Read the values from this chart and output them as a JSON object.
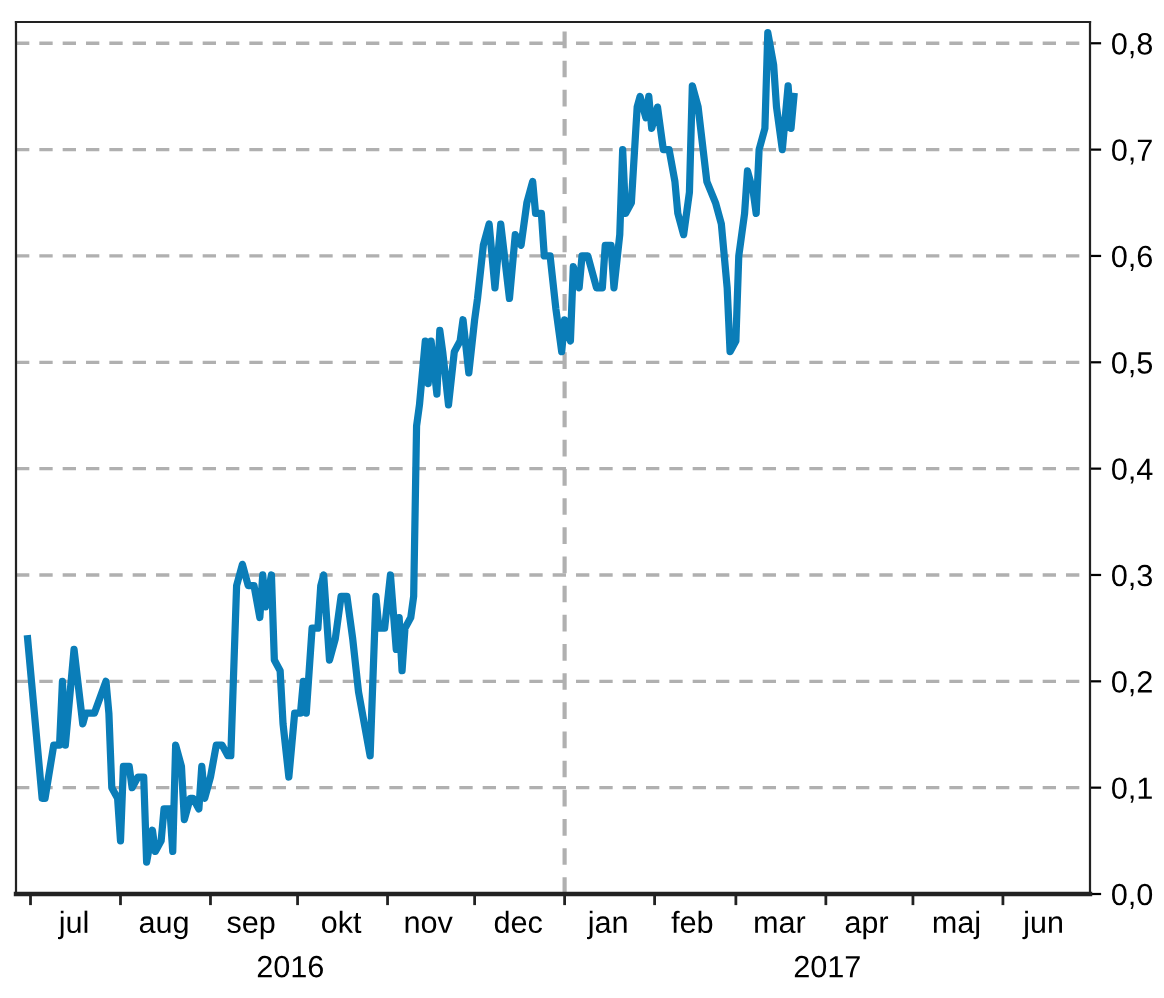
{
  "chart_data": {
    "type": "line",
    "x": [
      "2016-06-30",
      "2016-07-05",
      "2016-07-06",
      "2016-07-09",
      "2016-07-11",
      "2016-07-12",
      "2016-07-13",
      "2016-07-16",
      "2016-07-19",
      "2016-07-20",
      "2016-07-23",
      "2016-07-27",
      "2016-07-28",
      "2016-07-29",
      "2016-07-31",
      "2016-08-01",
      "2016-08-02",
      "2016-08-04",
      "2016-08-05",
      "2016-08-07",
      "2016-08-09",
      "2016-08-10",
      "2016-08-12",
      "2016-08-13",
      "2016-08-15",
      "2016-08-16",
      "2016-08-18",
      "2016-08-19",
      "2016-08-20",
      "2016-08-22",
      "2016-08-23",
      "2016-08-25",
      "2016-08-26",
      "2016-08-28",
      "2016-08-29",
      "2016-08-30",
      "2016-09-01",
      "2016-09-03",
      "2016-09-05",
      "2016-09-07",
      "2016-09-08",
      "2016-09-10",
      "2016-09-12",
      "2016-09-14",
      "2016-09-16",
      "2016-09-18",
      "2016-09-19",
      "2016-09-20",
      "2016-09-22",
      "2016-09-23",
      "2016-09-25",
      "2016-09-26",
      "2016-09-28",
      "2016-09-30",
      "2016-10-02",
      "2016-10-03",
      "2016-10-04",
      "2016-10-06",
      "2016-10-08",
      "2016-10-09",
      "2016-10-10",
      "2016-10-12",
      "2016-10-14",
      "2016-10-16",
      "2016-10-18",
      "2016-10-20",
      "2016-10-22",
      "2016-10-24",
      "2016-10-26",
      "2016-10-28",
      "2016-10-29",
      "2016-10-31",
      "2016-11-02",
      "2016-11-04",
      "2016-11-05",
      "2016-11-06",
      "2016-11-07",
      "2016-11-09",
      "2016-11-10",
      "2016-11-11",
      "2016-11-12",
      "2016-11-14",
      "2016-11-15",
      "2016-11-16",
      "2016-11-18",
      "2016-11-19",
      "2016-11-20",
      "2016-11-22",
      "2016-11-24",
      "2016-11-26",
      "2016-11-27",
      "2016-11-29",
      "2016-12-01",
      "2016-12-02",
      "2016-12-04",
      "2016-12-06",
      "2016-12-08",
      "2016-12-10",
      "2016-12-13",
      "2016-12-15",
      "2016-12-17",
      "2016-12-19",
      "2016-12-21",
      "2016-12-22",
      "2016-12-24",
      "2016-12-25",
      "2016-12-27",
      "2016-12-29",
      "2016-12-31",
      "2017-01-01",
      "2017-01-03",
      "2017-01-04",
      "2017-01-06",
      "2017-01-07",
      "2017-01-09",
      "2017-01-10",
      "2017-01-12",
      "2017-01-14",
      "2017-01-15",
      "2017-01-17",
      "2017-01-18",
      "2017-01-20",
      "2017-01-21",
      "2017-01-22",
      "2017-01-24",
      "2017-01-26",
      "2017-01-27",
      "2017-01-29",
      "2017-01-30",
      "2017-01-31",
      "2017-02-02",
      "2017-02-04",
      "2017-02-06",
      "2017-02-08",
      "2017-02-09",
      "2017-02-11",
      "2017-02-13",
      "2017-02-14",
      "2017-02-16",
      "2017-02-19",
      "2017-02-22",
      "2017-02-24",
      "2017-02-26",
      "2017-02-27",
      "2017-03-01",
      "2017-03-02",
      "2017-03-04",
      "2017-03-05",
      "2017-03-07",
      "2017-03-08",
      "2017-03-09",
      "2017-03-11",
      "2017-03-12",
      "2017-03-14",
      "2017-03-15",
      "2017-03-17",
      "2017-03-19",
      "2017-03-20",
      "2017-03-21"
    ],
    "series": [
      {
        "color": "#0a7db8",
        "values": [
          0.24,
          0.09,
          0.09,
          0.14,
          0.14,
          0.2,
          0.14,
          0.23,
          0.16,
          0.17,
          0.17,
          0.2,
          0.17,
          0.1,
          0.09,
          0.05,
          0.12,
          0.12,
          0.1,
          0.11,
          0.11,
          0.03,
          0.06,
          0.04,
          0.05,
          0.08,
          0.08,
          0.04,
          0.14,
          0.12,
          0.07,
          0.09,
          0.09,
          0.08,
          0.12,
          0.09,
          0.11,
          0.14,
          0.14,
          0.13,
          0.13,
          0.29,
          0.31,
          0.29,
          0.29,
          0.26,
          0.3,
          0.27,
          0.3,
          0.22,
          0.21,
          0.16,
          0.11,
          0.17,
          0.17,
          0.2,
          0.17,
          0.25,
          0.25,
          0.29,
          0.3,
          0.22,
          0.24,
          0.28,
          0.28,
          0.24,
          0.19,
          0.16,
          0.13,
          0.28,
          0.25,
          0.25,
          0.3,
          0.23,
          0.26,
          0.21,
          0.25,
          0.26,
          0.28,
          0.44,
          0.46,
          0.52,
          0.48,
          0.52,
          0.47,
          0.53,
          0.51,
          0.46,
          0.51,
          0.52,
          0.54,
          0.49,
          0.54,
          0.56,
          0.61,
          0.63,
          0.57,
          0.63,
          0.56,
          0.62,
          0.61,
          0.65,
          0.67,
          0.64,
          0.64,
          0.6,
          0.6,
          0.55,
          0.51,
          0.54,
          0.52,
          0.59,
          0.57,
          0.6,
          0.6,
          0.59,
          0.57,
          0.57,
          0.61,
          0.61,
          0.57,
          0.62,
          0.7,
          0.64,
          0.65,
          0.74,
          0.75,
          0.73,
          0.75,
          0.72,
          0.74,
          0.7,
          0.7,
          0.67,
          0.64,
          0.62,
          0.66,
          0.76,
          0.74,
          0.67,
          0.65,
          0.63,
          0.57,
          0.51,
          0.52,
          0.6,
          0.64,
          0.68,
          0.66,
          0.64,
          0.7,
          0.72,
          0.81,
          0.78,
          0.74,
          0.7,
          0.76,
          0.72,
          0.75
        ]
      }
    ],
    "xlim": [
      "2016-06-26",
      "2017-07-01"
    ],
    "xticks": [
      {
        "value": "2016-07-01",
        "label": null
      },
      {
        "value": "2016-07-16",
        "label": "jul"
      },
      {
        "value": "2016-08-01",
        "label": null
      },
      {
        "value": "2016-08-16",
        "label": "aug"
      },
      {
        "value": "2016-09-01",
        "label": null
      },
      {
        "value": "2016-09-15",
        "label": "sep"
      },
      {
        "value": "2016-10-01",
        "label": null
      },
      {
        "value": "2016-10-16",
        "label": "okt"
      },
      {
        "value": "2016-11-01",
        "label": null
      },
      {
        "value": "2016-11-15",
        "label": "nov"
      },
      {
        "value": "2016-12-01",
        "label": null
      },
      {
        "value": "2016-12-16",
        "label": "dec"
      },
      {
        "value": "2017-01-01",
        "label": null
      },
      {
        "value": "2017-01-16",
        "label": "jan"
      },
      {
        "value": "2017-02-01",
        "label": null
      },
      {
        "value": "2017-02-14",
        "label": "feb"
      },
      {
        "value": "2017-03-01",
        "label": null
      },
      {
        "value": "2017-03-16",
        "label": "mar"
      },
      {
        "value": "2017-04-01",
        "label": null
      },
      {
        "value": "2017-04-15",
        "label": "apr"
      },
      {
        "value": "2017-05-01",
        "label": null
      },
      {
        "value": "2017-05-16",
        "label": "maj"
      },
      {
        "value": "2017-06-01",
        "label": null
      },
      {
        "value": "2017-06-15",
        "label": "jun"
      }
    ],
    "ylim": [
      0,
      0.82
    ],
    "yticks": [
      {
        "value": 0,
        "label": "0,0"
      },
      {
        "value": 0.1,
        "label": "0,1"
      },
      {
        "value": 0.2,
        "label": "0,2"
      },
      {
        "value": 0.3,
        "label": "0,3"
      },
      {
        "value": 0.4,
        "label": "0,4"
      },
      {
        "value": 0.5,
        "label": "0,5"
      },
      {
        "value": 0.6,
        "label": "0,6"
      },
      {
        "value": 0.7,
        "label": "0,7"
      },
      {
        "value": 0.8,
        "label": "0,8"
      }
    ],
    "annotations": [
      "2016",
      "2017"
    ],
    "ref_lines": [
      {
        "axis": "x",
        "value": "2017-01-01",
        "label": null,
        "color": "#b0b0b0",
        "line_style": "dashed"
      }
    ],
    "grid": "y",
    "marker": "none",
    "line_style": "solid",
    "legend": false
  }
}
